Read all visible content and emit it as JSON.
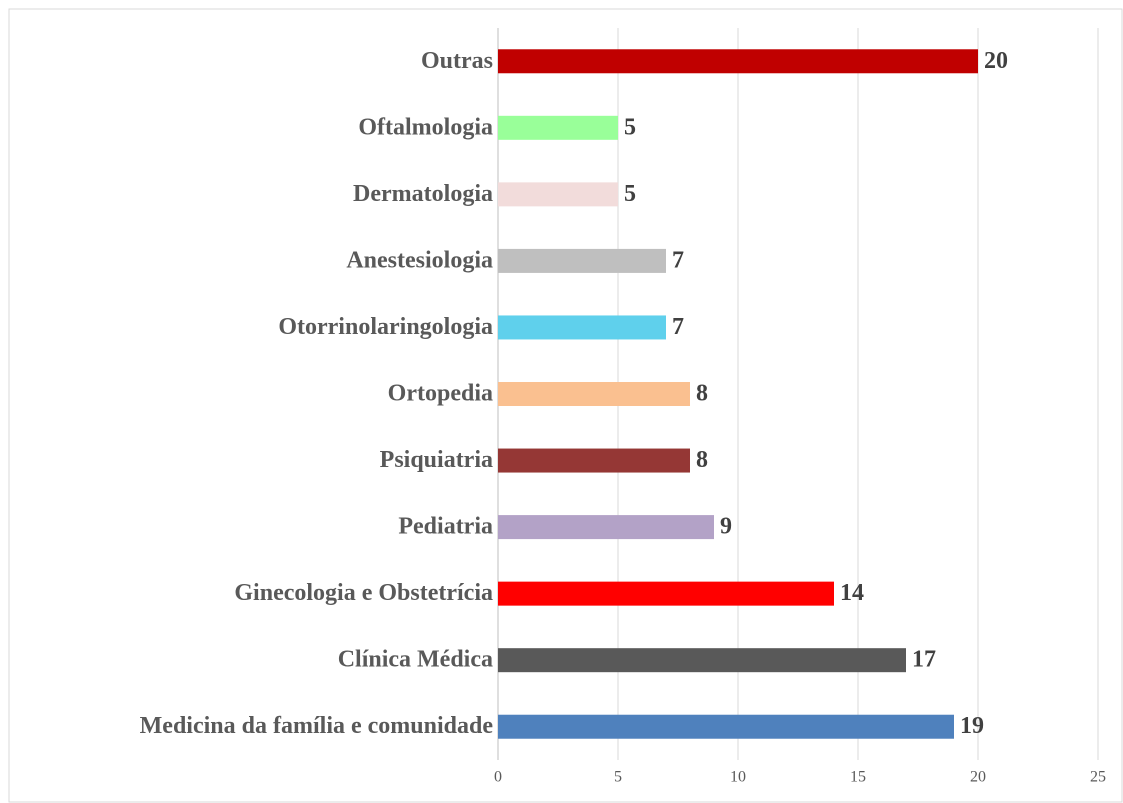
{
  "chart_data": {
    "type": "bar",
    "orientation": "horizontal",
    "categories": [
      "Medicina da família e comunidade",
      "Clínica Médica",
      "Ginecologia e Obstetrícia",
      "Pediatria",
      "Psiquiatria",
      "Ortopedia",
      "Otorrinolaringologia",
      "Anestesiologia",
      "Dermatologia",
      "Oftalmologia",
      "Outras"
    ],
    "values": [
      19,
      17,
      14,
      9,
      8,
      8,
      7,
      7,
      5,
      5,
      20
    ],
    "colors": [
      "#4f81bd",
      "#595959",
      "#ff0000",
      "#b3a2c7",
      "#953735",
      "#fac090",
      "#5fd0ec",
      "#bfbfbf",
      "#f2dcdb",
      "#99ff99",
      "#c00000"
    ],
    "xlim": [
      0,
      25
    ],
    "xticks": [
      0,
      5,
      10,
      15,
      20,
      25
    ],
    "grid": true
  }
}
